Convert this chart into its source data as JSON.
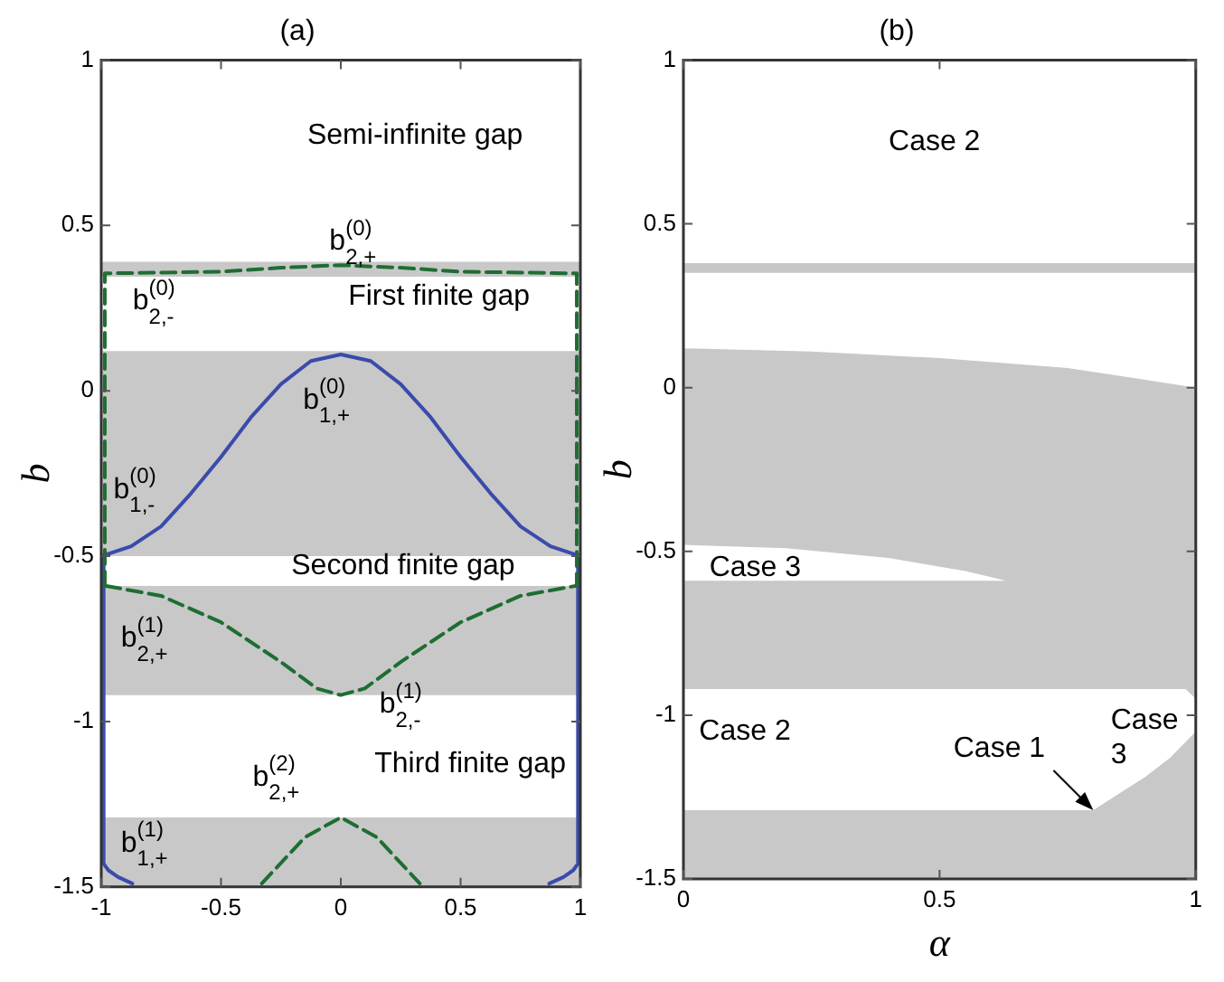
{
  "chart_data": [
    {
      "type": "line",
      "title": "(a)",
      "ylabel": "b",
      "xlim": [
        -1,
        1
      ],
      "xticks": [
        -1,
        -0.5,
        0,
        0.5,
        1
      ],
      "ylim": [
        -1.5,
        1
      ],
      "yticks": [
        -1.5,
        -1,
        -0.5,
        0,
        0.5,
        1
      ],
      "legend": false,
      "bands": [
        {
          "axis": "y",
          "from": 0.345,
          "to": 0.39,
          "color": "#c8c8c8"
        },
        {
          "axis": "y",
          "from": -0.5,
          "to": 0.12,
          "color": "#c8c8c8"
        },
        {
          "axis": "y",
          "from": -0.92,
          "to": -0.59,
          "color": "#c8c8c8"
        },
        {
          "axis": "y",
          "from": -1.5,
          "to": -1.29,
          "color": "#c8c8c8"
        }
      ],
      "series": [
        {
          "color": "#3a4bab",
          "line_style": "solid",
          "x": [
            -1,
            -0.875,
            -0.75,
            -0.625,
            -0.5,
            -0.375,
            -0.25,
            -0.125,
            0,
            0.125,
            0.25,
            0.375,
            0.5,
            0.625,
            0.75,
            0.875,
            1
          ],
          "values": [
            -0.5,
            -0.47,
            -0.41,
            -0.31,
            -0.2,
            -0.08,
            0.02,
            0.09,
            0.11,
            0.09,
            0.02,
            -0.08,
            -0.2,
            -0.31,
            -0.41,
            -0.47,
            -0.5
          ]
        },
        {
          "color": "#3a4bab",
          "line_style": "solid",
          "x": [
            -0.99,
            -0.99,
            -0.97,
            -0.93,
            -0.87
          ],
          "values": [
            -0.5,
            -1.43,
            -1.45,
            -1.47,
            -1.49
          ]
        },
        {
          "color": "#3a4bab",
          "line_style": "solid",
          "x": [
            0.99,
            0.99,
            0.97,
            0.93,
            0.87
          ],
          "values": [
            -0.5,
            -1.43,
            -1.45,
            -1.47,
            -1.49
          ]
        },
        {
          "color": "#1e6e32",
          "line_style": "dashed",
          "x": [
            -0.985,
            -0.985,
            -0.5,
            -0.25,
            0,
            0.25,
            0.5,
            0.985,
            0.985
          ],
          "values": [
            -0.59,
            0.355,
            0.36,
            0.372,
            0.38,
            0.372,
            0.36,
            0.355,
            -0.59
          ]
        },
        {
          "color": "#1e6e32",
          "line_style": "dashed",
          "x": [
            -0.98,
            -0.75,
            -0.5,
            -0.25,
            -0.1,
            0,
            0.1,
            0.25,
            0.5,
            0.75,
            0.98
          ],
          "values": [
            -0.59,
            -0.62,
            -0.7,
            -0.82,
            -0.9,
            -0.92,
            -0.9,
            -0.82,
            -0.7,
            -0.62,
            -0.59
          ]
        },
        {
          "color": "#1e6e32",
          "line_style": "dashed",
          "x": [
            -0.33,
            -0.15,
            0,
            0.15,
            0.33
          ],
          "values": [
            -1.49,
            -1.35,
            -1.29,
            -1.35,
            -1.49
          ]
        }
      ],
      "annotations": [
        "Semi-infinite gap",
        "b$^{(0)}$$_{2,+}$",
        "b$^{(0)}$$_{2,-}$",
        "First finite gap",
        "b$^{(0)}$$_{1,+}$",
        "b$^{(0)}$$_{1,-}$",
        "Second finite gap",
        "b$^{(1)}$$_{2,+}$",
        "b$^{(1)}$$_{2,-}$",
        "b$^{(2)}$$_{2,+}$",
        "Third finite gap",
        "b$^{(1)}$$_{1,+}$"
      ]
    },
    {
      "type": "area",
      "title": "(b)",
      "xlabel": "α",
      "ylabel": "b",
      "xlim": [
        0,
        1
      ],
      "xticks": [
        0,
        0.5,
        1
      ],
      "ylim": [
        -1.5,
        1
      ],
      "yticks": [
        -1.5,
        -1,
        -0.5,
        0,
        0.5,
        1
      ],
      "legend": false,
      "bands": [
        {
          "axis": "y",
          "from": 0.35,
          "to": 0.38,
          "color": "#c8c8c8"
        }
      ],
      "series": [
        {
          "color": "#c8c8c8",
          "x": [
            0,
            0,
            0.25,
            0.5,
            0.75,
            1,
            1
          ],
          "values": [
            -1.5,
            0.12,
            0.11,
            0.09,
            0.06,
            0.0,
            -1.5
          ]
        },
        {
          "color": "#ffffff",
          "x": [
            0,
            0.2,
            0.4,
            0.55,
            0.63,
            0
          ],
          "values": [
            -0.48,
            -0.49,
            -0.52,
            -0.56,
            -0.59,
            -0.59
          ]
        },
        {
          "color": "#ffffff",
          "x": [
            0,
            0.98,
            1,
            1,
            0.95,
            0.9,
            0.85,
            0.8,
            0
          ],
          "values": [
            -0.92,
            -0.92,
            -0.95,
            -1.05,
            -1.13,
            -1.19,
            -1.24,
            -1.29,
            -1.29
          ]
        }
      ],
      "annotations": [
        "Case 2",
        "Case 3",
        "Case 2",
        {
          "text": "Case 1",
          "x": 0.8,
          "y": -1.29
        },
        "Case 3"
      ]
    }
  ]
}
